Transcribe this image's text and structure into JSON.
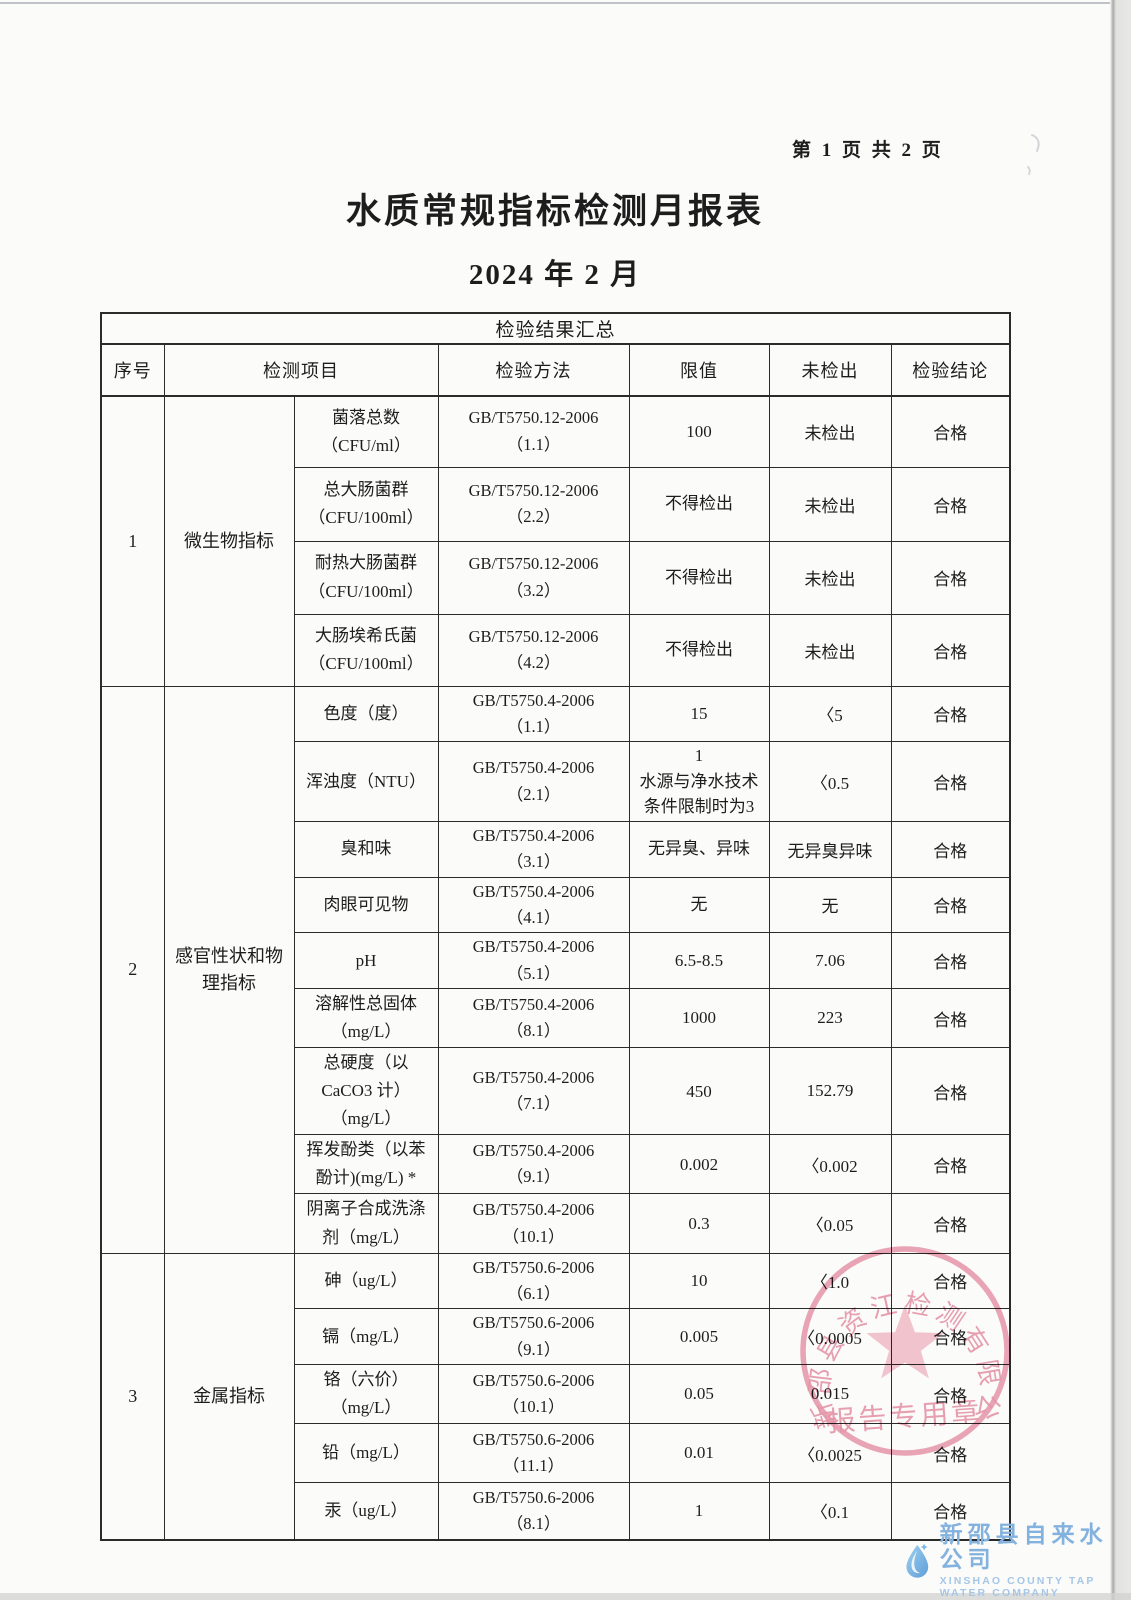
{
  "page": {
    "page_label": "第 1 页 共 2 页",
    "title": "水质常规指标检测月报表",
    "date": "2024 年 2 月"
  },
  "table": {
    "summary_title": "检验结果汇总",
    "headers": [
      "序号",
      "检测项目",
      "检验方法",
      "限值",
      "未检出",
      "检验结论"
    ],
    "sections": [
      {
        "no": "1",
        "category": "微生物指标",
        "rows": [
          {
            "item": "菌落总数\n（CFU/ml）",
            "method": "GB/T5750.12-2006\n（1.1）",
            "limit": "100",
            "result": "未检出",
            "conclusion": "合格"
          },
          {
            "item": "总大肠菌群\n（CFU/100ml）",
            "method": "GB/T5750.12-2006\n（2.2）",
            "limit": "不得检出",
            "result": "未检出",
            "conclusion": "合格"
          },
          {
            "item": "耐热大肠菌群\n（CFU/100ml）",
            "method": "GB/T5750.12-2006\n（3.2）",
            "limit": "不得检出",
            "result": "未检出",
            "conclusion": "合格"
          },
          {
            "item": "大肠埃希氏菌\n（CFU/100ml）",
            "method": "GB/T5750.12-2006\n（4.2）",
            "limit": "不得检出",
            "result": "未检出",
            "conclusion": "合格"
          }
        ]
      },
      {
        "no": "2",
        "category": "感官性状和物\n理指标",
        "rows": [
          {
            "item": "色度（度）",
            "method": "GB/T5750.4-2006\n（1.1）",
            "limit": "15",
            "result": "〈5",
            "conclusion": "合格"
          },
          {
            "item": "浑浊度（NTU）",
            "method": "GB/T5750.4-2006\n（2.1）",
            "limit": "1\n水源与净水技术\n条件限制时为3",
            "result": "〈0.5",
            "conclusion": "合格"
          },
          {
            "item": "臭和味",
            "method": "GB/T5750.4-2006\n（3.1）",
            "limit": "无异臭、异味",
            "result": "无异臭异味",
            "conclusion": "合格"
          },
          {
            "item": "肉眼可见物",
            "method": "GB/T5750.4-2006\n（4.1）",
            "limit": "无",
            "result": "无",
            "conclusion": "合格"
          },
          {
            "item": "pH",
            "method": "GB/T5750.4-2006\n（5.1）",
            "limit": "6.5-8.5",
            "result": "7.06",
            "conclusion": "合格"
          },
          {
            "item": "溶解性总固体\n（mg/L）",
            "method": "GB/T5750.4-2006\n（8.1）",
            "limit": "1000",
            "result": "223",
            "conclusion": "合格"
          },
          {
            "item": "总硬度（以\nCaCO3 计）\n（mg/L）",
            "method": "GB/T5750.4-2006\n（7.1）",
            "limit": "450",
            "result": "152.79",
            "conclusion": "合格"
          },
          {
            "item": "挥发酚类（以苯\n酚计)(mg/L) *",
            "method": "GB/T5750.4-2006\n（9.1）",
            "limit": "0.002",
            "result": "〈0.002",
            "conclusion": "合格"
          },
          {
            "item": "阴离子合成洗涤\n剂（mg/L）",
            "method": "GB/T5750.4-2006\n（10.1）",
            "limit": "0.3",
            "result": "〈0.05",
            "conclusion": "合格"
          }
        ]
      },
      {
        "no": "3",
        "category": "金属指标",
        "rows": [
          {
            "item": "砷（ug/L）",
            "method": "GB/T5750.6-2006\n（6.1）",
            "limit": "10",
            "result": "〈1.0",
            "conclusion": "合格"
          },
          {
            "item": "镉（mg/L）",
            "method": "GB/T5750.6-2006\n（9.1）",
            "limit": "0.005",
            "result": "〈0.0005",
            "conclusion": "合格"
          },
          {
            "item": "铬（六价）\n（mg/L）",
            "method": "GB/T5750.6-2006\n（10.1）",
            "limit": "0.05",
            "result": "0.015",
            "conclusion": "合格"
          },
          {
            "item": "铅（mg/L）",
            "method": "GB/T5750.6-2006\n（11.1）",
            "limit": "0.01",
            "result": "〈0.0025",
            "conclusion": "合格"
          },
          {
            "item": "汞（ug/L）",
            "method": "GB/T5750.6-2006\n（8.1）",
            "limit": "1",
            "result": "〈0.1",
            "conclusion": "合格"
          }
        ]
      }
    ]
  },
  "stamp": {
    "company": "新邵县资江检测有限公司",
    "label": "报告专用章",
    "color": "#e4859c"
  },
  "footer": {
    "company_cn": "新邵县自来水公司",
    "company_en": "XINSHAO COUNTY TAP WATER COMPANY",
    "logo_blue": "#84b2de"
  }
}
